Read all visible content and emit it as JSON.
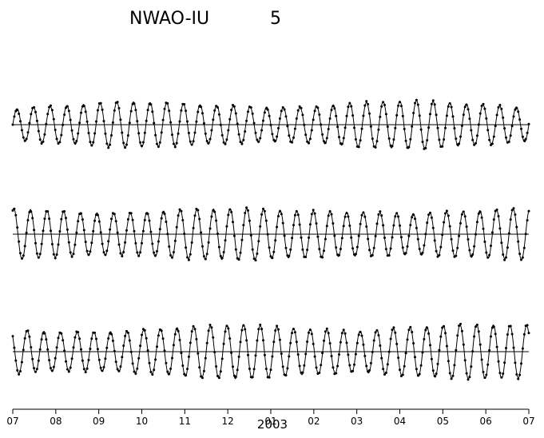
{
  "title": {
    "station": "NWAO-IU",
    "number": "5"
  },
  "chart_data": {
    "type": "line",
    "title": "NWAO-IU 5",
    "xlabel": "",
    "ylabel": "",
    "x_ticks": [
      "07",
      "08",
      "09",
      "10",
      "11",
      "12",
      "01",
      "02",
      "03",
      "04",
      "05",
      "06",
      "07"
    ],
    "year_label": "2003",
    "grid": false,
    "legend": "none",
    "series_style": "solid line (model) with dot markers (observed)",
    "series": [
      {
        "cycles": 31,
        "mean_amplitude": 0.8,
        "envelope": [
          0.65,
          0.8,
          0.95,
          0.85,
          0.75,
          0.7,
          0.9,
          1.0,
          0.85,
          0.7
        ],
        "phase": 0.0,
        "offset": 0.0
      },
      {
        "cycles": 31,
        "mean_amplitude": 0.85,
        "envelope": [
          1.0,
          0.85,
          0.8,
          0.95,
          1.0,
          0.9,
          0.85,
          0.8,
          0.9,
          1.0
        ],
        "phase": 1.2,
        "offset": 0.0
      },
      {
        "cycles": 31,
        "mean_amplitude": 0.9,
        "envelope": [
          0.8,
          0.7,
          0.75,
          0.9,
          1.0,
          0.85,
          0.75,
          0.9,
          1.0,
          0.95
        ],
        "phase": 2.4,
        "offset": 0.0
      }
    ]
  }
}
